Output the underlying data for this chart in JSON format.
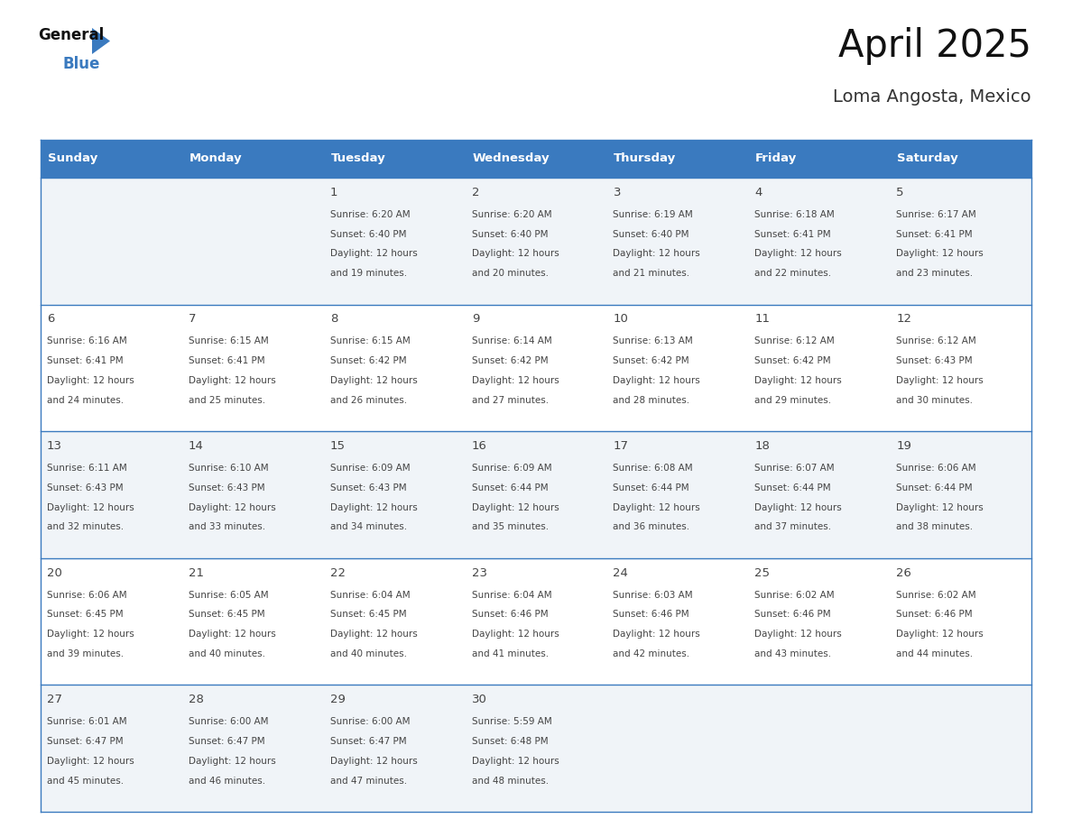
{
  "title": "April 2025",
  "subtitle": "Loma Angosta, Mexico",
  "header_bg_color": "#3a7abf",
  "header_text_color": "#ffffff",
  "day_names": [
    "Sunday",
    "Monday",
    "Tuesday",
    "Wednesday",
    "Thursday",
    "Friday",
    "Saturday"
  ],
  "row_bg_colors": [
    "#f0f4f8",
    "#ffffff",
    "#f0f4f8",
    "#ffffff",
    "#f0f4f8"
  ],
  "cell_border_color": "#3a7abf",
  "text_color": "#444444",
  "title_color": "#111111",
  "subtitle_color": "#333333",
  "logo_general_color": "#111111",
  "logo_blue_color": "#3a7abf",
  "logo_triangle_color": "#3a7abf",
  "days": [
    {
      "day": null,
      "col": 0,
      "row": 0
    },
    {
      "day": null,
      "col": 1,
      "row": 0
    },
    {
      "day": 1,
      "col": 2,
      "row": 0,
      "sunrise": "6:20 AM",
      "sunset": "6:40 PM",
      "daylight_line1": "Daylight: 12 hours",
      "daylight_line2": "and 19 minutes."
    },
    {
      "day": 2,
      "col": 3,
      "row": 0,
      "sunrise": "6:20 AM",
      "sunset": "6:40 PM",
      "daylight_line1": "Daylight: 12 hours",
      "daylight_line2": "and 20 minutes."
    },
    {
      "day": 3,
      "col": 4,
      "row": 0,
      "sunrise": "6:19 AM",
      "sunset": "6:40 PM",
      "daylight_line1": "Daylight: 12 hours",
      "daylight_line2": "and 21 minutes."
    },
    {
      "day": 4,
      "col": 5,
      "row": 0,
      "sunrise": "6:18 AM",
      "sunset": "6:41 PM",
      "daylight_line1": "Daylight: 12 hours",
      "daylight_line2": "and 22 minutes."
    },
    {
      "day": 5,
      "col": 6,
      "row": 0,
      "sunrise": "6:17 AM",
      "sunset": "6:41 PM",
      "daylight_line1": "Daylight: 12 hours",
      "daylight_line2": "and 23 minutes."
    },
    {
      "day": 6,
      "col": 0,
      "row": 1,
      "sunrise": "6:16 AM",
      "sunset": "6:41 PM",
      "daylight_line1": "Daylight: 12 hours",
      "daylight_line2": "and 24 minutes."
    },
    {
      "day": 7,
      "col": 1,
      "row": 1,
      "sunrise": "6:15 AM",
      "sunset": "6:41 PM",
      "daylight_line1": "Daylight: 12 hours",
      "daylight_line2": "and 25 minutes."
    },
    {
      "day": 8,
      "col": 2,
      "row": 1,
      "sunrise": "6:15 AM",
      "sunset": "6:42 PM",
      "daylight_line1": "Daylight: 12 hours",
      "daylight_line2": "and 26 minutes."
    },
    {
      "day": 9,
      "col": 3,
      "row": 1,
      "sunrise": "6:14 AM",
      "sunset": "6:42 PM",
      "daylight_line1": "Daylight: 12 hours",
      "daylight_line2": "and 27 minutes."
    },
    {
      "day": 10,
      "col": 4,
      "row": 1,
      "sunrise": "6:13 AM",
      "sunset": "6:42 PM",
      "daylight_line1": "Daylight: 12 hours",
      "daylight_line2": "and 28 minutes."
    },
    {
      "day": 11,
      "col": 5,
      "row": 1,
      "sunrise": "6:12 AM",
      "sunset": "6:42 PM",
      "daylight_line1": "Daylight: 12 hours",
      "daylight_line2": "and 29 minutes."
    },
    {
      "day": 12,
      "col": 6,
      "row": 1,
      "sunrise": "6:12 AM",
      "sunset": "6:43 PM",
      "daylight_line1": "Daylight: 12 hours",
      "daylight_line2": "and 30 minutes."
    },
    {
      "day": 13,
      "col": 0,
      "row": 2,
      "sunrise": "6:11 AM",
      "sunset": "6:43 PM",
      "daylight_line1": "Daylight: 12 hours",
      "daylight_line2": "and 32 minutes."
    },
    {
      "day": 14,
      "col": 1,
      "row": 2,
      "sunrise": "6:10 AM",
      "sunset": "6:43 PM",
      "daylight_line1": "Daylight: 12 hours",
      "daylight_line2": "and 33 minutes."
    },
    {
      "day": 15,
      "col": 2,
      "row": 2,
      "sunrise": "6:09 AM",
      "sunset": "6:43 PM",
      "daylight_line1": "Daylight: 12 hours",
      "daylight_line2": "and 34 minutes."
    },
    {
      "day": 16,
      "col": 3,
      "row": 2,
      "sunrise": "6:09 AM",
      "sunset": "6:44 PM",
      "daylight_line1": "Daylight: 12 hours",
      "daylight_line2": "and 35 minutes."
    },
    {
      "day": 17,
      "col": 4,
      "row": 2,
      "sunrise": "6:08 AM",
      "sunset": "6:44 PM",
      "daylight_line1": "Daylight: 12 hours",
      "daylight_line2": "and 36 minutes."
    },
    {
      "day": 18,
      "col": 5,
      "row": 2,
      "sunrise": "6:07 AM",
      "sunset": "6:44 PM",
      "daylight_line1": "Daylight: 12 hours",
      "daylight_line2": "and 37 minutes."
    },
    {
      "day": 19,
      "col": 6,
      "row": 2,
      "sunrise": "6:06 AM",
      "sunset": "6:44 PM",
      "daylight_line1": "Daylight: 12 hours",
      "daylight_line2": "and 38 minutes."
    },
    {
      "day": 20,
      "col": 0,
      "row": 3,
      "sunrise": "6:06 AM",
      "sunset": "6:45 PM",
      "daylight_line1": "Daylight: 12 hours",
      "daylight_line2": "and 39 minutes."
    },
    {
      "day": 21,
      "col": 1,
      "row": 3,
      "sunrise": "6:05 AM",
      "sunset": "6:45 PM",
      "daylight_line1": "Daylight: 12 hours",
      "daylight_line2": "and 40 minutes."
    },
    {
      "day": 22,
      "col": 2,
      "row": 3,
      "sunrise": "6:04 AM",
      "sunset": "6:45 PM",
      "daylight_line1": "Daylight: 12 hours",
      "daylight_line2": "and 40 minutes."
    },
    {
      "day": 23,
      "col": 3,
      "row": 3,
      "sunrise": "6:04 AM",
      "sunset": "6:46 PM",
      "daylight_line1": "Daylight: 12 hours",
      "daylight_line2": "and 41 minutes."
    },
    {
      "day": 24,
      "col": 4,
      "row": 3,
      "sunrise": "6:03 AM",
      "sunset": "6:46 PM",
      "daylight_line1": "Daylight: 12 hours",
      "daylight_line2": "and 42 minutes."
    },
    {
      "day": 25,
      "col": 5,
      "row": 3,
      "sunrise": "6:02 AM",
      "sunset": "6:46 PM",
      "daylight_line1": "Daylight: 12 hours",
      "daylight_line2": "and 43 minutes."
    },
    {
      "day": 26,
      "col": 6,
      "row": 3,
      "sunrise": "6:02 AM",
      "sunset": "6:46 PM",
      "daylight_line1": "Daylight: 12 hours",
      "daylight_line2": "and 44 minutes."
    },
    {
      "day": 27,
      "col": 0,
      "row": 4,
      "sunrise": "6:01 AM",
      "sunset": "6:47 PM",
      "daylight_line1": "Daylight: 12 hours",
      "daylight_line2": "and 45 minutes."
    },
    {
      "day": 28,
      "col": 1,
      "row": 4,
      "sunrise": "6:00 AM",
      "sunset": "6:47 PM",
      "daylight_line1": "Daylight: 12 hours",
      "daylight_line2": "and 46 minutes."
    },
    {
      "day": 29,
      "col": 2,
      "row": 4,
      "sunrise": "6:00 AM",
      "sunset": "6:47 PM",
      "daylight_line1": "Daylight: 12 hours",
      "daylight_line2": "and 47 minutes."
    },
    {
      "day": 30,
      "col": 3,
      "row": 4,
      "sunrise": "5:59 AM",
      "sunset": "6:48 PM",
      "daylight_line1": "Daylight: 12 hours",
      "daylight_line2": "and 48 minutes."
    },
    {
      "day": null,
      "col": 4,
      "row": 4
    },
    {
      "day": null,
      "col": 5,
      "row": 4
    },
    {
      "day": null,
      "col": 6,
      "row": 4
    }
  ]
}
